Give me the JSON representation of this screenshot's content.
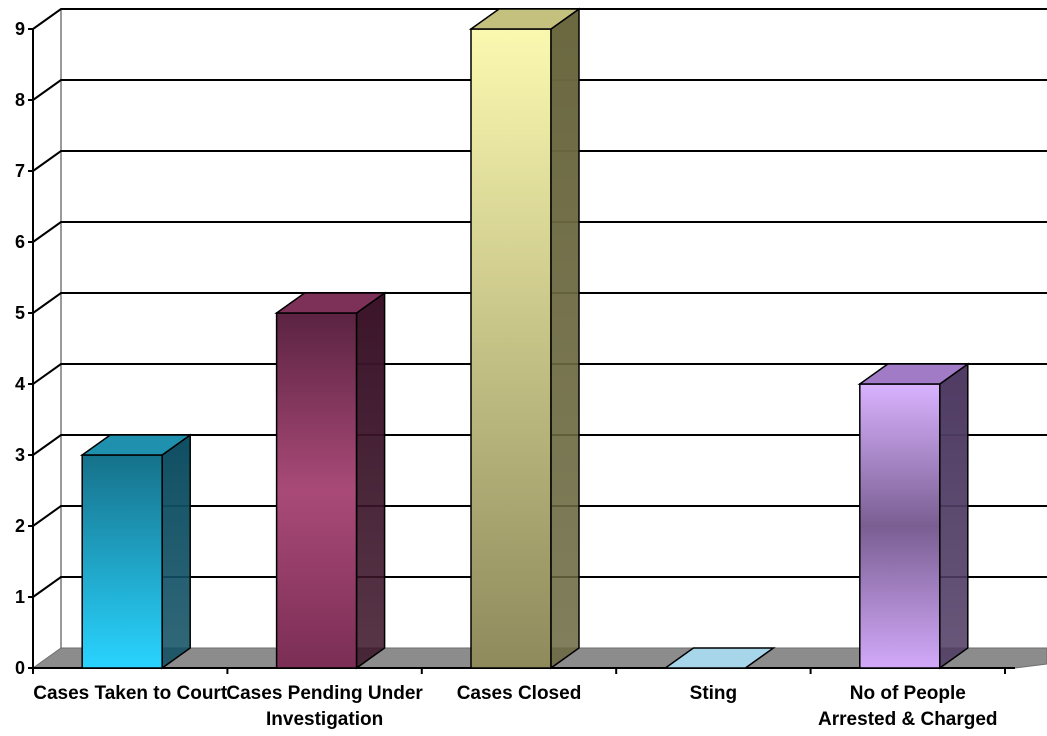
{
  "chart_data": {
    "type": "bar",
    "categories": [
      "Cases Taken to Court",
      "Cases Pending Under Investigation",
      "Cases Closed",
      "Sting",
      "No of People Arrested & Charged"
    ],
    "category_label_lines": [
      [
        "Cases Taken to Court"
      ],
      [
        "Cases Pending Under",
        "Investigation"
      ],
      [
        "Cases Closed"
      ],
      [
        "Sting"
      ],
      [
        "No of People",
        "Arrested & Charged"
      ]
    ],
    "values": [
      3,
      5,
      9,
      0,
      4
    ],
    "yticks": [
      "0",
      "1",
      "2",
      "3",
      "4",
      "5",
      "6",
      "7",
      "8",
      "9"
    ],
    "ylim": [
      0,
      9
    ],
    "grid": true,
    "legend": "none",
    "title": "",
    "xlabel": "",
    "ylabel": "",
    "bar_colors": [
      {
        "front_top": "#16718a",
        "front_bottom": "#29d4ff",
        "side": "#0f4f63",
        "top": "#1f90ad"
      },
      {
        "front_top": "#5b2341",
        "front_bottom": "#7b2e55",
        "mid": "#a94a78",
        "side": "#3b1429",
        "top": "#7d3158"
      },
      {
        "front_top": "#fbf9b0",
        "front_bottom": "#8e8a5c",
        "side": "#6b6840",
        "top": "#c4c07e"
      },
      {
        "front_top": "#a7d5ea",
        "front_bottom": "#a7d5ea",
        "side": "#7fb3cb",
        "top": "#a7d5ea"
      },
      {
        "front_top": "#d9b3ff",
        "front_bottom": "#d2a9f9",
        "mid": "#7a5e92",
        "side": "#4f3b63",
        "top": "#a27bc7"
      }
    ]
  }
}
